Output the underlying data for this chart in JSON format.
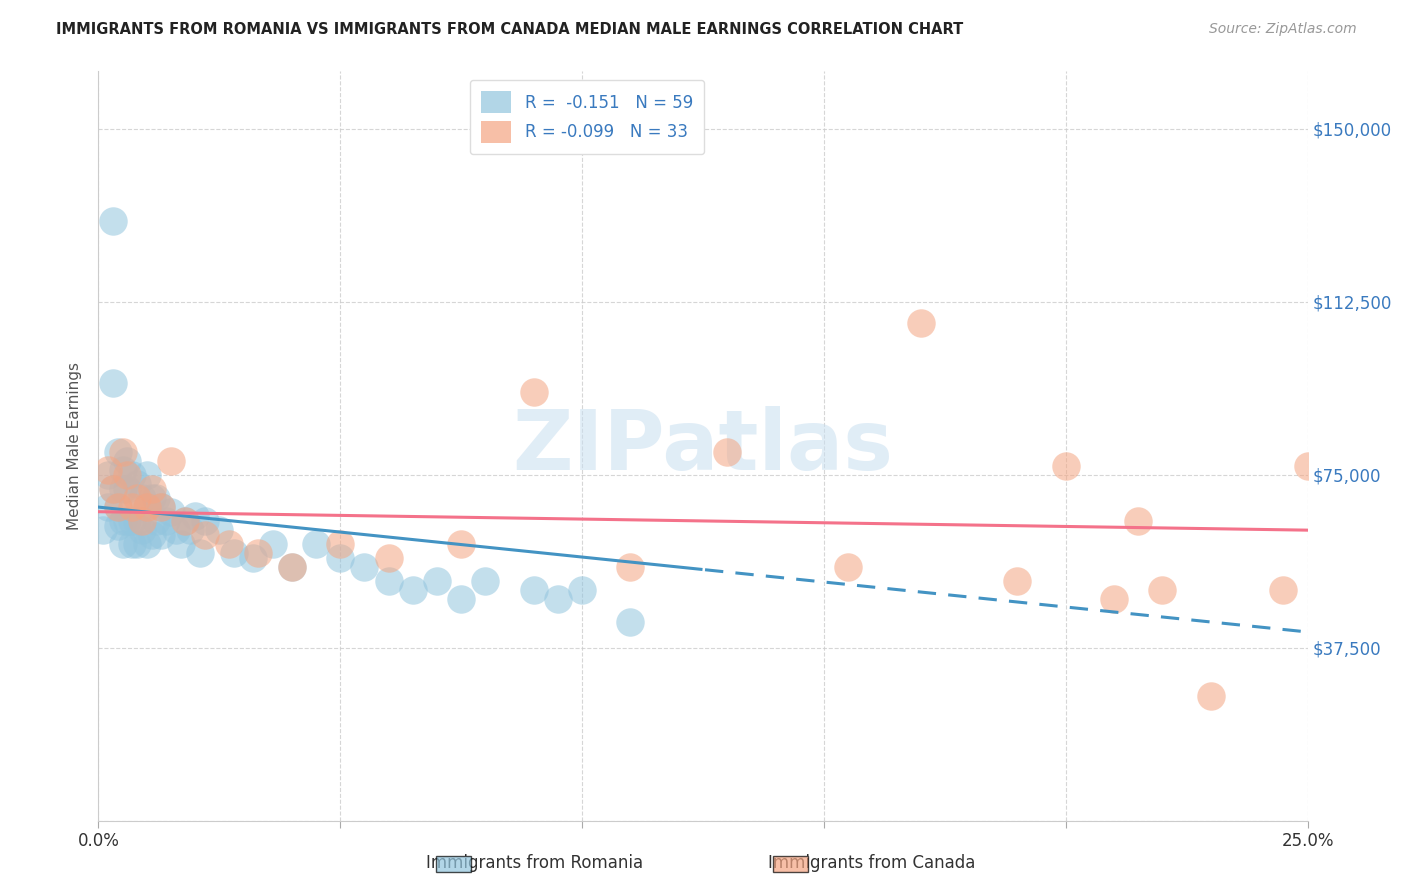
{
  "title": "IMMIGRANTS FROM ROMANIA VS IMMIGRANTS FROM CANADA MEDIAN MALE EARNINGS CORRELATION CHART",
  "source": "Source: ZipAtlas.com",
  "ylabel": "Median Male Earnings",
  "xlim": [
    0,
    0.25
  ],
  "ylim": [
    0,
    162500
  ],
  "yticks": [
    0,
    37500,
    75000,
    112500,
    150000
  ],
  "ytick_labels": [
    "",
    "$37,500",
    "$75,000",
    "$112,500",
    "$150,000"
  ],
  "xticks": [
    0.0,
    0.05,
    0.1,
    0.15,
    0.2,
    0.25
  ],
  "xtick_labels": [
    "0.0%",
    "",
    "",
    "",
    "",
    "25.0%"
  ],
  "legend_romania": "R =  -0.151   N = 59",
  "legend_canada": "R = -0.099   N = 33",
  "romania_color": "#92c5de",
  "canada_color": "#f4a582",
  "trend_romania_color": "#4393c3",
  "trend_canada_color": "#f4728a",
  "watermark": "ZIPatlas",
  "romania_x": [
    0.001,
    0.002,
    0.002,
    0.003,
    0.003,
    0.003,
    0.004,
    0.004,
    0.004,
    0.005,
    0.005,
    0.005,
    0.005,
    0.006,
    0.006,
    0.006,
    0.007,
    0.007,
    0.007,
    0.008,
    0.008,
    0.008,
    0.009,
    0.009,
    0.01,
    0.01,
    0.01,
    0.011,
    0.011,
    0.012,
    0.012,
    0.013,
    0.013,
    0.014,
    0.015,
    0.016,
    0.017,
    0.018,
    0.019,
    0.02,
    0.021,
    0.022,
    0.025,
    0.028,
    0.032,
    0.036,
    0.04,
    0.045,
    0.05,
    0.055,
    0.06,
    0.065,
    0.07,
    0.075,
    0.08,
    0.09,
    0.095,
    0.1,
    0.11
  ],
  "romania_y": [
    63000,
    75000,
    68000,
    130000,
    95000,
    72000,
    80000,
    68000,
    64000,
    76000,
    72000,
    65000,
    60000,
    78000,
    72000,
    65000,
    75000,
    65000,
    60000,
    73000,
    65000,
    60000,
    70000,
    63000,
    68000,
    60000,
    75000,
    70000,
    62000,
    65000,
    70000,
    68000,
    62000,
    65000,
    67000,
    63000,
    60000,
    65000,
    63000,
    66000,
    58000,
    65000,
    63000,
    58000,
    57000,
    60000,
    55000,
    60000,
    57000,
    55000,
    52000,
    50000,
    52000,
    48000,
    52000,
    50000,
    48000,
    50000,
    43000
  ],
  "canada_x": [
    0.002,
    0.003,
    0.004,
    0.005,
    0.006,
    0.007,
    0.008,
    0.009,
    0.01,
    0.011,
    0.013,
    0.015,
    0.018,
    0.022,
    0.027,
    0.033,
    0.04,
    0.05,
    0.06,
    0.075,
    0.09,
    0.11,
    0.13,
    0.155,
    0.17,
    0.19,
    0.2,
    0.21,
    0.215,
    0.22,
    0.23,
    0.245,
    0.25
  ],
  "canada_y": [
    76000,
    72000,
    68000,
    80000,
    75000,
    68000,
    70000,
    65000,
    68000,
    72000,
    68000,
    78000,
    65000,
    62000,
    60000,
    58000,
    55000,
    60000,
    57000,
    60000,
    93000,
    55000,
    80000,
    55000,
    108000,
    52000,
    77000,
    48000,
    65000,
    50000,
    27000,
    50000,
    77000
  ]
}
